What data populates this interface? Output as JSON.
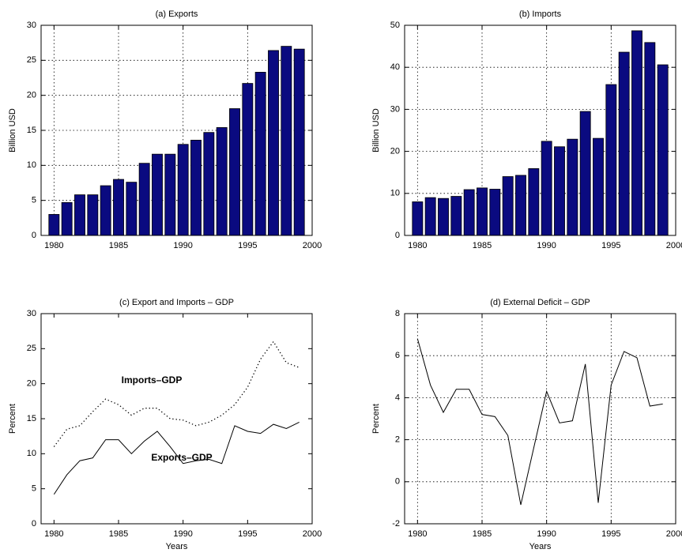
{
  "chart_data": [
    {
      "type": "bar",
      "title": "(a) Exports",
      "ylabel": "Billion USD",
      "x": [
        1980,
        1981,
        1982,
        1983,
        1984,
        1985,
        1986,
        1987,
        1988,
        1989,
        1990,
        1991,
        1992,
        1993,
        1994,
        1995,
        1996,
        1997,
        1998,
        1999
      ],
      "values": [
        3.0,
        4.7,
        5.8,
        5.8,
        7.1,
        8.0,
        7.6,
        10.3,
        11.6,
        11.6,
        13.0,
        13.6,
        14.7,
        15.4,
        18.1,
        21.7,
        23.3,
        26.4,
        27.0,
        26.6
      ],
      "color": "#0a0a80",
      "xlim": [
        1979,
        2000
      ],
      "xticks": [
        1980,
        1985,
        1990,
        1995,
        2000
      ],
      "ylim": [
        0,
        30
      ],
      "yticks": [
        0,
        5,
        10,
        15,
        20,
        25,
        30
      ],
      "grid": true
    },
    {
      "type": "bar",
      "title": "(b) Imports",
      "ylabel": "Billion USD",
      "x": [
        1980,
        1981,
        1982,
        1983,
        1984,
        1985,
        1986,
        1987,
        1988,
        1989,
        1990,
        1991,
        1992,
        1993,
        1994,
        1995,
        1996,
        1997,
        1998,
        1999
      ],
      "values": [
        8.0,
        9.0,
        8.8,
        9.3,
        10.9,
        11.3,
        11.0,
        14.0,
        14.3,
        15.9,
        22.4,
        21.1,
        22.9,
        29.5,
        23.1,
        35.9,
        43.6,
        48.7,
        45.9,
        40.6
      ],
      "color": "#0a0a80",
      "xlim": [
        1979,
        2000
      ],
      "xticks": [
        1980,
        1985,
        1990,
        1995,
        2000
      ],
      "ylim": [
        0,
        50
      ],
      "yticks": [
        0,
        10,
        20,
        30,
        40,
        50
      ],
      "grid": true
    },
    {
      "type": "line",
      "title": "(c) Export and Imports – GDP",
      "xlabel": "Years",
      "ylabel": "Percent",
      "x": [
        1980,
        1981,
        1982,
        1983,
        1984,
        1985,
        1986,
        1987,
        1988,
        1989,
        1990,
        1991,
        1992,
        1993,
        1994,
        1995,
        1996,
        1997,
        1998,
        1999
      ],
      "series": [
        {
          "name": "Imports–GDP",
          "color": "#000000",
          "style": "dotted",
          "values": [
            11.0,
            13.5,
            14.0,
            16.0,
            17.8,
            17.0,
            15.5,
            16.5,
            16.5,
            15.0,
            14.8,
            14.0,
            14.5,
            15.5,
            17.0,
            19.5,
            23.5,
            26.0,
            23.0,
            22.3
          ]
        },
        {
          "name": "Exports–GDP",
          "color": "#000000",
          "style": "solid",
          "values": [
            4.2,
            7.0,
            9.0,
            9.4,
            12.0,
            12.0,
            10.0,
            11.8,
            13.2,
            11.0,
            8.6,
            9.0,
            9.2,
            8.6,
            14.0,
            13.2,
            12.9,
            14.2,
            13.6,
            14.5
          ]
        }
      ],
      "xlim": [
        1979,
        2000
      ],
      "xticks": [
        1980,
        1985,
        1990,
        1995,
        2000
      ],
      "ylim": [
        0,
        30
      ],
      "yticks": [
        0,
        5,
        10,
        15,
        20,
        25,
        30
      ],
      "grid": false
    },
    {
      "type": "line",
      "title": "(d) External Deficit – GDP",
      "xlabel": "Years",
      "ylabel": "Percent",
      "x": [
        1980,
        1981,
        1982,
        1983,
        1984,
        1985,
        1986,
        1987,
        1988,
        1989,
        1990,
        1991,
        1992,
        1993,
        1994,
        1995,
        1996,
        1997,
        1998,
        1999
      ],
      "values": [
        6.8,
        4.6,
        3.3,
        4.4,
        4.4,
        3.2,
        3.1,
        2.2,
        -1.1,
        1.6,
        4.3,
        2.8,
        2.9,
        5.6,
        -1.0,
        4.6,
        6.2,
        5.9,
        3.6,
        3.7
      ],
      "color": "#000000",
      "xlim": [
        1979,
        2000
      ],
      "xticks": [
        1980,
        1985,
        1990,
        1995,
        2000
      ],
      "ylim": [
        -2,
        8
      ],
      "yticks": [
        -2,
        0,
        2,
        4,
        6,
        8
      ],
      "grid": true
    }
  ]
}
